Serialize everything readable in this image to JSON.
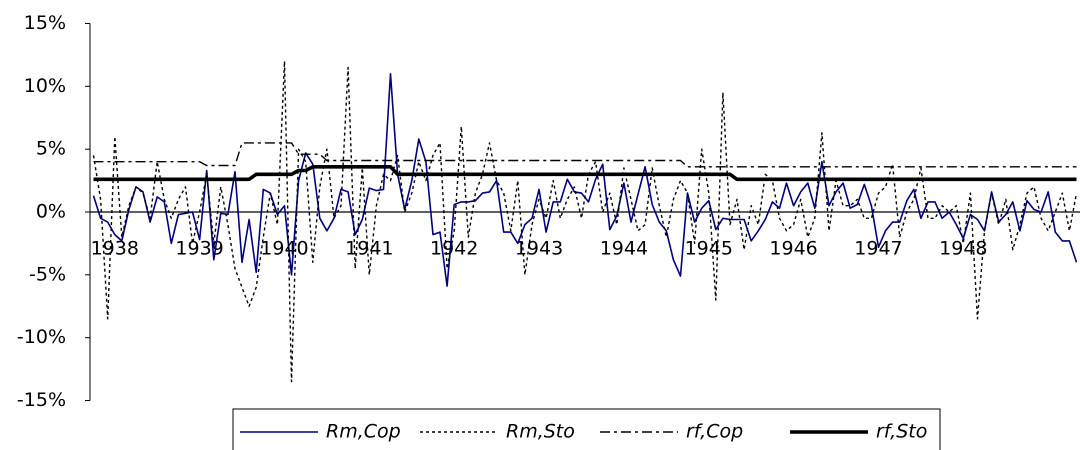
{
  "chart_data": {
    "type": "line",
    "categories": [
      null,
      null,
      null,
      "1938",
      null,
      null,
      null,
      null,
      null,
      null,
      null,
      null,
      null,
      null,
      null,
      "1939",
      null,
      null,
      null,
      null,
      null,
      null,
      null,
      null,
      null,
      null,
      null,
      "1940",
      null,
      null,
      null,
      null,
      null,
      null,
      null,
      null,
      null,
      null,
      null,
      "1941",
      null,
      null,
      null,
      null,
      null,
      null,
      null,
      null,
      null,
      null,
      null,
      "1942",
      null,
      null,
      null,
      null,
      null,
      null,
      null,
      null,
      null,
      null,
      null,
      "1943",
      null,
      null,
      null,
      null,
      null,
      null,
      null,
      null,
      null,
      null,
      null,
      "1944",
      null,
      null,
      null,
      null,
      null,
      null,
      null,
      null,
      null,
      null,
      null,
      "1945",
      null,
      null,
      null,
      null,
      null,
      null,
      null,
      null,
      null,
      null,
      null,
      "1946",
      null,
      null,
      null,
      null,
      null,
      null,
      null,
      null,
      null,
      null,
      null,
      "1947",
      null,
      null,
      null,
      null,
      null,
      null,
      null,
      null,
      null,
      null,
      null,
      "1948",
      null,
      null,
      null,
      null,
      null,
      null,
      null,
      null,
      null,
      null,
      null,
      null,
      null,
      null,
      null,
      null
    ],
    "series": [
      {
        "name": "Rm,Cop",
        "color": "#000080",
        "line_style": "solid",
        "line_width": 1.6,
        "values": [
          1.3,
          -0.5,
          -0.8,
          -1.8,
          -2.3,
          0.2,
          2.0,
          1.6,
          -0.8,
          1.2,
          0.8,
          -2.5,
          -0.2,
          -0.1,
          0.0,
          -2.2,
          3.3,
          -3.8,
          -0.1,
          -0.2,
          3.2,
          -4.0,
          -0.6,
          -4.8,
          1.8,
          1.5,
          -0.2,
          0.5,
          -5.0,
          2.5,
          4.7,
          3.8,
          -0.5,
          -1.5,
          -0.5,
          1.8,
          1.6,
          -1.8,
          -0.6,
          1.9,
          1.7,
          1.8,
          11.0,
          3.0,
          0.2,
          2.5,
          5.8,
          4.0,
          -1.8,
          -1.6,
          -5.9,
          0.6,
          0.8,
          0.8,
          0.9,
          1.5,
          1.6,
          2.5,
          -1.6,
          -1.6,
          -2.5,
          -1.0,
          -0.5,
          1.8,
          -1.6,
          0.8,
          0.8,
          2.6,
          1.6,
          1.5,
          0.8,
          2.6,
          3.8,
          -1.4,
          -0.3,
          2.3,
          -0.8,
          1.4,
          3.6,
          0.6,
          -0.8,
          -1.5,
          -3.8,
          -5.1,
          1.5,
          -0.8,
          0.3,
          0.9,
          -1.4,
          -0.5,
          -0.6,
          -0.6,
          -0.6,
          -2.3,
          -1.5,
          -0.6,
          0.8,
          0.3,
          2.3,
          0.5,
          1.6,
          2.3,
          0.3,
          4.0,
          0.5,
          1.6,
          2.3,
          0.3,
          0.6,
          2.2,
          0.5,
          -2.8,
          -1.5,
          -0.8,
          -0.8,
          0.9,
          1.8,
          -0.5,
          0.8,
          0.8,
          -0.5,
          0.0,
          -1.0,
          -2.1,
          -0.2,
          -0.6,
          -1.5,
          1.6,
          -0.8,
          -0.2,
          0.8,
          -1.5,
          0.9,
          0.2,
          0.0,
          1.6,
          -1.6,
          -2.3,
          -2.3,
          -4.0
        ]
      },
      {
        "name": "Rm,Sto",
        "color": "#000000",
        "line_style": "dotted",
        "line_width": 1.4,
        "values": [
          4.5,
          1.0,
          -8.5,
          6.0,
          -2.0,
          0.5,
          2.0,
          1.5,
          -0.5,
          4.0,
          1.0,
          -0.5,
          1.0,
          2.0,
          -2.5,
          0.0,
          3.0,
          -2.5,
          2.0,
          -1.0,
          -4.5,
          -6.0,
          -7.5,
          -6.0,
          -2.0,
          1.5,
          -1.0,
          12.0,
          -13.5,
          5.0,
          4.0,
          -4.0,
          2.0,
          5.0,
          -0.5,
          0.5,
          11.5,
          -4.5,
          3.5,
          -5.0,
          0.5,
          3.0,
          2.5,
          4.5,
          0.0,
          1.5,
          4.0,
          2.5,
          4.5,
          5.5,
          -4.5,
          -1.5,
          6.8,
          -2.0,
          1.5,
          3.0,
          5.5,
          2.5,
          1.5,
          -1.5,
          2.5,
          -5.0,
          -1.0,
          1.0,
          -0.5,
          2.5,
          -0.5,
          1.0,
          2.0,
          -0.5,
          3.0,
          4.0,
          0.0,
          1.5,
          -1.0,
          3.5,
          1.0,
          -1.5,
          -1.0,
          3.5,
          0.5,
          -2.0,
          1.0,
          2.5,
          1.5,
          -2.5,
          5.0,
          1.5,
          -7.0,
          9.5,
          -1.0,
          1.0,
          -3.0,
          0.5,
          -1.0,
          3.0,
          2.5,
          -0.5,
          -1.5,
          -1.0,
          1.0,
          -2.0,
          -0.5,
          6.3,
          -1.5,
          2.5,
          0.5,
          0.5,
          1.0,
          -0.5,
          -0.5,
          1.5,
          2.0,
          3.8,
          -2.0,
          0.0,
          1.0,
          3.5,
          -0.5,
          -0.5,
          0.5,
          0.0,
          0.5,
          -2.5,
          1.5,
          -8.5,
          -1.5,
          1.5,
          -1.0,
          1.0,
          -3.0,
          -1.0,
          1.5,
          2.0,
          -0.5,
          -1.5,
          0.0,
          1.5,
          -1.5,
          1.5
        ]
      },
      {
        "name": "rf,Cop",
        "color": "#000000",
        "line_style": "dashdot",
        "line_width": 1.4,
        "values": [
          4.0,
          4.0,
          4.0,
          4.0,
          4.0,
          4.0,
          4.0,
          4.0,
          4.0,
          4.0,
          4.0,
          4.0,
          4.0,
          4.0,
          4.0,
          4.0,
          3.7,
          3.7,
          3.7,
          3.7,
          3.7,
          5.5,
          5.5,
          5.5,
          5.5,
          5.5,
          5.5,
          5.5,
          5.5,
          4.6,
          4.6,
          4.6,
          4.6,
          4.1,
          4.1,
          4.1,
          4.1,
          4.1,
          4.1,
          4.1,
          4.1,
          4.1,
          4.1,
          4.1,
          4.1,
          4.1,
          4.1,
          4.1,
          4.1,
          4.1,
          4.1,
          4.1,
          4.1,
          4.1,
          4.1,
          4.1,
          4.1,
          4.1,
          4.1,
          4.1,
          4.1,
          4.1,
          4.1,
          4.1,
          4.1,
          4.1,
          4.1,
          4.1,
          4.1,
          4.1,
          4.1,
          4.1,
          4.1,
          4.1,
          4.1,
          4.1,
          4.1,
          4.1,
          4.1,
          4.1,
          4.1,
          4.1,
          4.1,
          4.1,
          3.6,
          3.6,
          3.6,
          3.6,
          3.6,
          3.6,
          3.6,
          3.6,
          3.6,
          3.6,
          3.6,
          3.6,
          3.6,
          3.6,
          3.6,
          3.6,
          3.6,
          3.6,
          3.6,
          3.6,
          3.6,
          3.6,
          3.6,
          3.6,
          3.6,
          3.6,
          3.6,
          3.6,
          3.6,
          3.6,
          3.6,
          3.6,
          3.6,
          3.6,
          3.6,
          3.6,
          3.6,
          3.6,
          3.6,
          3.6,
          3.6,
          3.6,
          3.6,
          3.6,
          3.6,
          3.6,
          3.6,
          3.6,
          3.6,
          3.6,
          3.6,
          3.6,
          3.6,
          3.6,
          3.6,
          3.6
        ]
      },
      {
        "name": "rf,Sto",
        "color": "#000000",
        "line_style": "solid",
        "line_width": 3.6,
        "values": [
          2.6,
          2.6,
          2.6,
          2.6,
          2.6,
          2.6,
          2.6,
          2.6,
          2.6,
          2.6,
          2.6,
          2.6,
          2.6,
          2.6,
          2.6,
          2.6,
          2.6,
          2.6,
          2.6,
          2.6,
          2.6,
          2.6,
          2.6,
          3.0,
          3.0,
          3.0,
          3.0,
          3.0,
          3.0,
          3.3,
          3.3,
          3.6,
          3.6,
          3.6,
          3.6,
          3.6,
          3.6,
          3.6,
          3.6,
          3.6,
          3.6,
          3.6,
          3.6,
          3.0,
          3.0,
          3.0,
          3.0,
          3.0,
          3.0,
          3.0,
          3.0,
          3.0,
          3.0,
          3.0,
          3.0,
          3.0,
          3.0,
          3.0,
          3.0,
          3.0,
          3.0,
          3.0,
          3.0,
          3.0,
          3.0,
          3.0,
          3.0,
          3.0,
          3.0,
          3.0,
          3.0,
          3.0,
          3.0,
          3.0,
          3.0,
          3.0,
          3.0,
          3.0,
          3.0,
          3.0,
          3.0,
          3.0,
          3.0,
          3.0,
          3.0,
          3.0,
          3.0,
          3.0,
          3.0,
          3.0,
          3.0,
          2.6,
          2.6,
          2.6,
          2.6,
          2.6,
          2.6,
          2.6,
          2.6,
          2.6,
          2.6,
          2.6,
          2.6,
          2.6,
          2.6,
          2.6,
          2.6,
          2.6,
          2.6,
          2.6,
          2.6,
          2.6,
          2.6,
          2.6,
          2.6,
          2.6,
          2.6,
          2.6,
          2.6,
          2.6,
          2.6,
          2.6,
          2.6,
          2.6,
          2.6,
          2.6,
          2.6,
          2.6,
          2.6,
          2.6,
          2.6,
          2.6,
          2.6,
          2.6,
          2.6,
          2.6,
          2.6,
          2.6,
          2.6,
          2.6
        ]
      }
    ],
    "ylim": [
      -15,
      15
    ],
    "yticks": [
      {
        "value": -15,
        "label": "-15%"
      },
      {
        "value": -10,
        "label": "-10%"
      },
      {
        "value": -5,
        "label": "-5%"
      },
      {
        "value": 0,
        "label": "0%"
      },
      {
        "value": 5,
        "label": "5%"
      },
      {
        "value": 10,
        "label": "10%"
      },
      {
        "value": 15,
        "label": "15%"
      }
    ],
    "grid": false,
    "legend": "bottom"
  }
}
